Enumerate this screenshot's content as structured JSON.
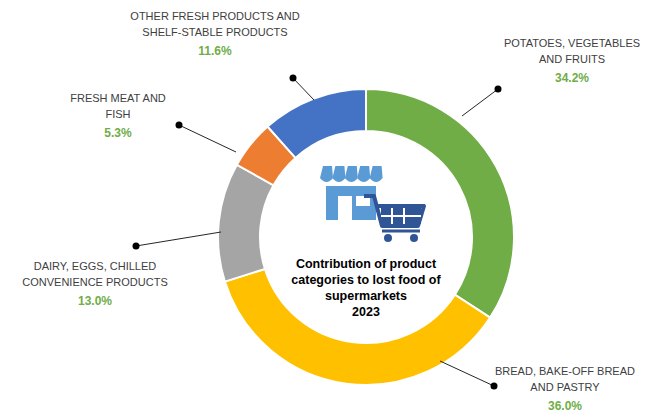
{
  "chart_data": {
    "type": "donut",
    "title": "Contribution of product categories to lost food of supermarkets",
    "subtitle": "2023",
    "categories": [
      "POTATOES, VEGETABLES AND FRUITS",
      "BREAD, BAKE-OFF BREAD AND PASTRY",
      "DAIRY, EGGS, CHILLED CONVENIENCE PRODUCTS",
      "FRESH MEAT AND FISH",
      "OTHER FRESH PRODUCTS AND SHELF-STABLE PRODUCTS"
    ],
    "values": [
      34.2,
      36.0,
      13.0,
      5.3,
      11.6
    ],
    "value_labels": [
      "34.2%",
      "36.0%",
      "13.0%",
      "5.3%",
      "11.6%"
    ],
    "colors": [
      "#70ad47",
      "#ffc000",
      "#a5a5a5",
      "#ed7d31",
      "#4472c4"
    ],
    "data_labels": true
  }
}
